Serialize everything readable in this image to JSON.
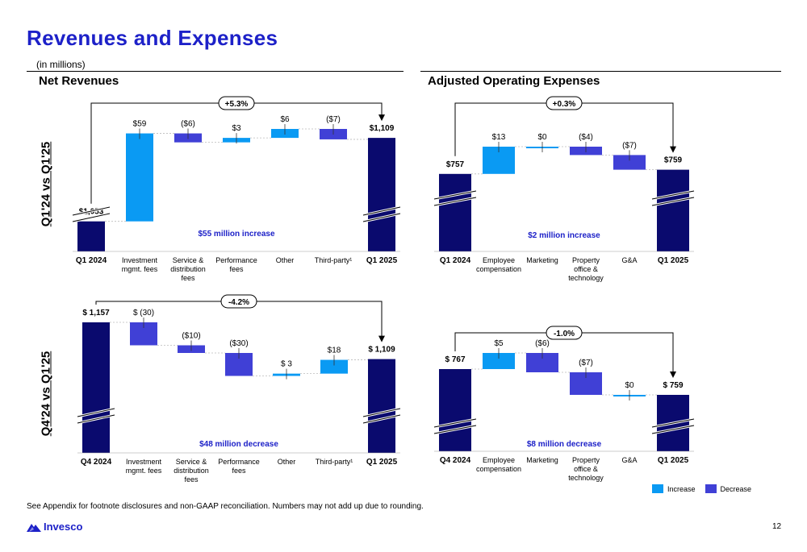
{
  "page": {
    "title": "Revenues and Expenses",
    "subtitle": "(in millions)",
    "row_labels": [
      "Q1'24 vs Q1'25",
      "Q4'24 vs Q1'25"
    ],
    "section_titles": [
      "Net Revenues",
      "Adjusted Operating Expenses"
    ],
    "footnote": "See Appendix for footnote disclosures and non-GAAP reconciliation. Numbers may not add up due to rounding.",
    "logo_text": "Invesco",
    "page_number": "12"
  },
  "legend": [
    {
      "label": "Increase",
      "color": "#0a9af3"
    },
    {
      "label": "Decrease",
      "color": "#4040d6"
    }
  ],
  "colors": {
    "total": "#0a0a6e",
    "increase": "#0a9af3",
    "decrease": "#4040d6",
    "accent": "#1d21c8"
  },
  "chart_data": [
    {
      "type": "bar",
      "subtype": "waterfall",
      "section": "Net Revenues",
      "period": "Q1'24 vs Q1'25",
      "categories": [
        "Q1 2024",
        "Investment mgmt. fees",
        "Service & distribution fees",
        "Performance fees",
        "Other",
        "Third-party¹",
        "Q1 2025"
      ],
      "values": [
        1053,
        59,
        -6,
        3,
        6,
        -7,
        1109
      ],
      "kinds": [
        "total",
        "increase",
        "decrease",
        "increase",
        "increase",
        "decrease",
        "total"
      ],
      "value_labels": [
        "$1,053",
        "$59",
        "($6)",
        "$3",
        "$6",
        "($7)",
        "$1,109"
      ],
      "change_label": "+5.3%",
      "summary": "$55 million increase"
    },
    {
      "type": "bar",
      "subtype": "waterfall",
      "section": "Adjusted Operating Expenses",
      "period": "Q1'24 vs Q1'25",
      "categories": [
        "Q1 2024",
        "Employee compensation",
        "Marketing",
        "Property office & technology",
        "G&A",
        "Q1 2025"
      ],
      "values": [
        757,
        13,
        0,
        -4,
        -7,
        759
      ],
      "kinds": [
        "total",
        "increase",
        "increase",
        "decrease",
        "decrease",
        "total"
      ],
      "value_labels": [
        "$757",
        "$13",
        "$0",
        "($4)",
        "($7)",
        "$759"
      ],
      "change_label": "+0.3%",
      "summary": "$2 million increase"
    },
    {
      "type": "bar",
      "subtype": "waterfall",
      "section": "Net Revenues",
      "period": "Q4'24 vs Q1'25",
      "categories": [
        "Q4 2024",
        "Investment mgmt. fees",
        "Service & distribution fees",
        "Performance fees",
        "Other",
        "Third-party¹",
        "Q1 2025"
      ],
      "values": [
        1157,
        -30,
        -10,
        -30,
        3,
        18,
        1109
      ],
      "kinds": [
        "total",
        "decrease",
        "decrease",
        "decrease",
        "increase",
        "increase",
        "total"
      ],
      "value_labels": [
        "$ 1,157",
        "$ (30)",
        "($10)",
        "($30)",
        "$ 3",
        "$18",
        "$ 1,109"
      ],
      "change_label": "-4.2%",
      "summary": "$48 million decrease"
    },
    {
      "type": "bar",
      "subtype": "waterfall",
      "section": "Adjusted Operating Expenses",
      "period": "Q4'24 vs Q1'25",
      "categories": [
        "Q4 2024",
        "Employee compensation",
        "Marketing",
        "Property office & technology",
        "G&A",
        "Q1 2025"
      ],
      "values": [
        767,
        5,
        -6,
        -7,
        0,
        759
      ],
      "kinds": [
        "total",
        "increase",
        "decrease",
        "decrease",
        "increase",
        "total"
      ],
      "value_labels": [
        "$ 767",
        "$5",
        "($6)",
        "($7)",
        "$0",
        "$ 759"
      ],
      "change_label": "-1.0%",
      "summary": "$8 million decrease"
    }
  ]
}
